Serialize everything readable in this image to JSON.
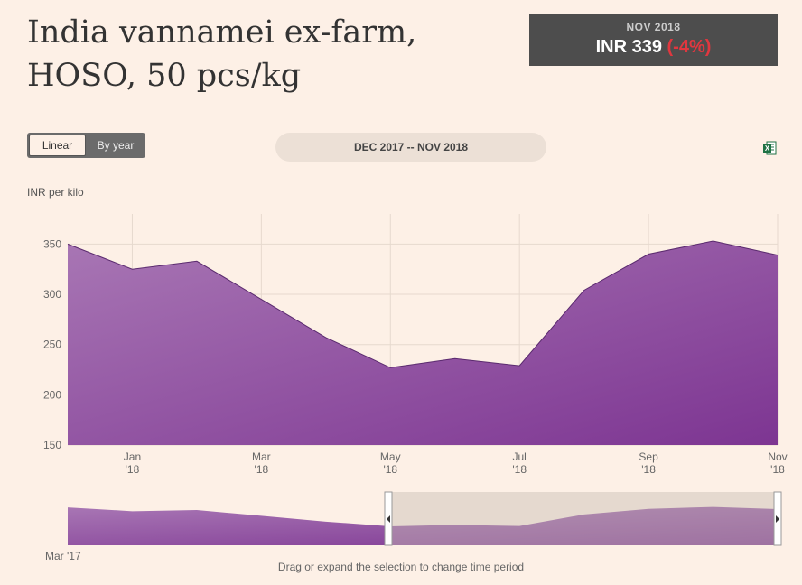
{
  "header": {
    "title": "India vannamei ex-farm, HOSO, 50 pcs/kg",
    "price_date": "NOV 2018",
    "price_value": "INR 339",
    "price_change": "(-4%)"
  },
  "controls": {
    "linear_label": "Linear",
    "by_year_label": "By year",
    "range_label": "DEC 2017 -- NOV 2018",
    "export_icon": "excel-icon"
  },
  "navigator": {
    "start_label": "Mar '17",
    "hint": "Drag or expand the selection to change time period"
  },
  "colors": {
    "area_top": "#a876b4",
    "area_bottom": "#7d3592",
    "price_change": "#e0373f",
    "background": "#fdf0e6"
  },
  "chart_data": {
    "type": "area",
    "ylabel": "INR per kilo",
    "x": [
      "Dec '17",
      "Jan '18",
      "Feb '18",
      "Mar '18",
      "Apr '18",
      "May '18",
      "Jun '18",
      "Jul '18",
      "Aug '18",
      "Sep '18",
      "Oct '18",
      "Nov '18"
    ],
    "values": [
      350,
      325,
      333,
      295,
      257,
      227,
      236,
      229,
      304,
      340,
      353,
      339
    ],
    "xticks": [
      {
        "label": "Jan",
        "sub": "'18",
        "index": 1
      },
      {
        "label": "Mar",
        "sub": "'18",
        "index": 3
      },
      {
        "label": "May",
        "sub": "'18",
        "index": 5
      },
      {
        "label": "Jul",
        "sub": "'18",
        "index": 7
      },
      {
        "label": "Sep",
        "sub": "'18",
        "index": 9
      },
      {
        "label": "Nov",
        "sub": "'18",
        "index": 11
      }
    ],
    "yticks": [
      150,
      200,
      250,
      300,
      350
    ],
    "ylim": [
      150,
      380
    ],
    "grid": true,
    "legend": "none"
  }
}
